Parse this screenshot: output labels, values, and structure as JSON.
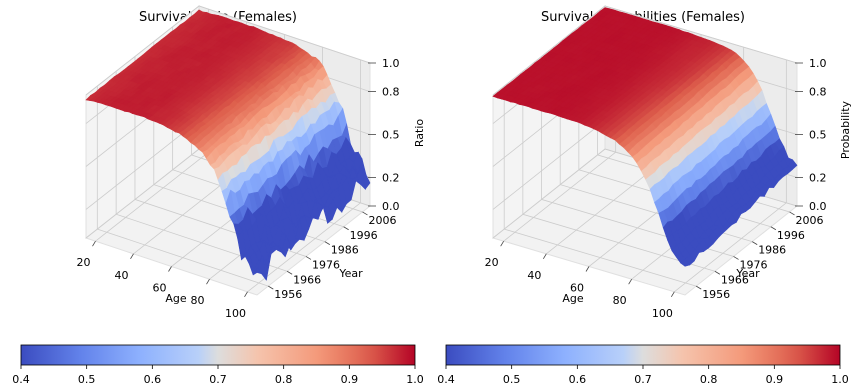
{
  "colormap": {
    "name": "coolwarm",
    "low": "#3b4cc0",
    "mid": "#dddddd",
    "high": "#b40426"
  },
  "chart_data": [
    {
      "type": "surface",
      "title": "Survival Ratio (Females)",
      "xlabel": "Age",
      "ylabel": "Year",
      "zlabel": "Ratio",
      "x_ticks": [
        "20",
        "40",
        "60",
        "80",
        "100"
      ],
      "y_ticks": [
        "1956",
        "1966",
        "1976",
        "1986",
        "1996",
        "2006"
      ],
      "z_ticks": [
        "0.0",
        "0.2",
        "0.5",
        "0.8",
        "1.0"
      ],
      "xlim": [
        15,
        105
      ],
      "ylim": [
        1950,
        2010
      ],
      "zlim": [
        0,
        1
      ],
      "grid": true,
      "noise": true,
      "age_profile": {
        "age": [
          15,
          30,
          45,
          55,
          65,
          72,
          78,
          83,
          88,
          92,
          96,
          100,
          105
        ],
        "value": [
          0.97,
          0.98,
          0.98,
          0.97,
          0.95,
          0.92,
          0.87,
          0.79,
          0.66,
          0.5,
          0.33,
          0.22,
          0.18
        ]
      },
      "colorbar": {
        "ticks": [
          "0.4",
          "0.5",
          "0.6",
          "0.7",
          "0.8",
          "0.9",
          "1.0"
        ],
        "range": [
          0.4,
          1.0
        ]
      }
    },
    {
      "type": "surface",
      "title": "Survival Probabilities (Females)",
      "xlabel": "Age",
      "ylabel": "Year",
      "zlabel": "Probability",
      "x_ticks": [
        "20",
        "40",
        "60",
        "80",
        "100"
      ],
      "y_ticks": [
        "1956",
        "1966",
        "1976",
        "1986",
        "1996",
        "2006"
      ],
      "z_ticks": [
        "0.0",
        "0.2",
        "0.5",
        "0.8",
        "1.0"
      ],
      "xlim": [
        15,
        105
      ],
      "ylim": [
        1950,
        2010
      ],
      "zlim": [
        0,
        1
      ],
      "grid": true,
      "noise": false,
      "age_profile": {
        "age": [
          15,
          30,
          45,
          55,
          65,
          72,
          78,
          83,
          88,
          92,
          96,
          100,
          105
        ],
        "value": [
          0.99,
          0.99,
          0.99,
          0.985,
          0.97,
          0.95,
          0.91,
          0.84,
          0.72,
          0.57,
          0.42,
          0.3,
          0.24
        ]
      },
      "colorbar": {
        "ticks": [
          "0.4",
          "0.5",
          "0.6",
          "0.7",
          "0.8",
          "0.9",
          "1.0"
        ],
        "range": [
          0.4,
          1.0
        ]
      }
    }
  ]
}
